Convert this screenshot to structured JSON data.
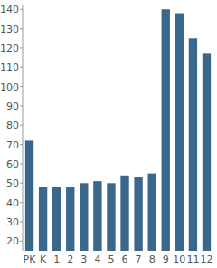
{
  "chart_data": {
    "type": "bar",
    "categories": [
      "PK",
      "K",
      "1",
      "2",
      "3",
      "4",
      "5",
      "6",
      "7",
      "8",
      "9",
      "10",
      "11",
      "12"
    ],
    "values": [
      72,
      48,
      48,
      48,
      50,
      51,
      50,
      54,
      53,
      55,
      140,
      138,
      125,
      117
    ],
    "color": "#3a678c",
    "ylim": [
      15,
      142
    ],
    "yticks": [
      20,
      30,
      40,
      50,
      60,
      70,
      80,
      90,
      100,
      110,
      120,
      130,
      140
    ],
    "grid": false
  }
}
